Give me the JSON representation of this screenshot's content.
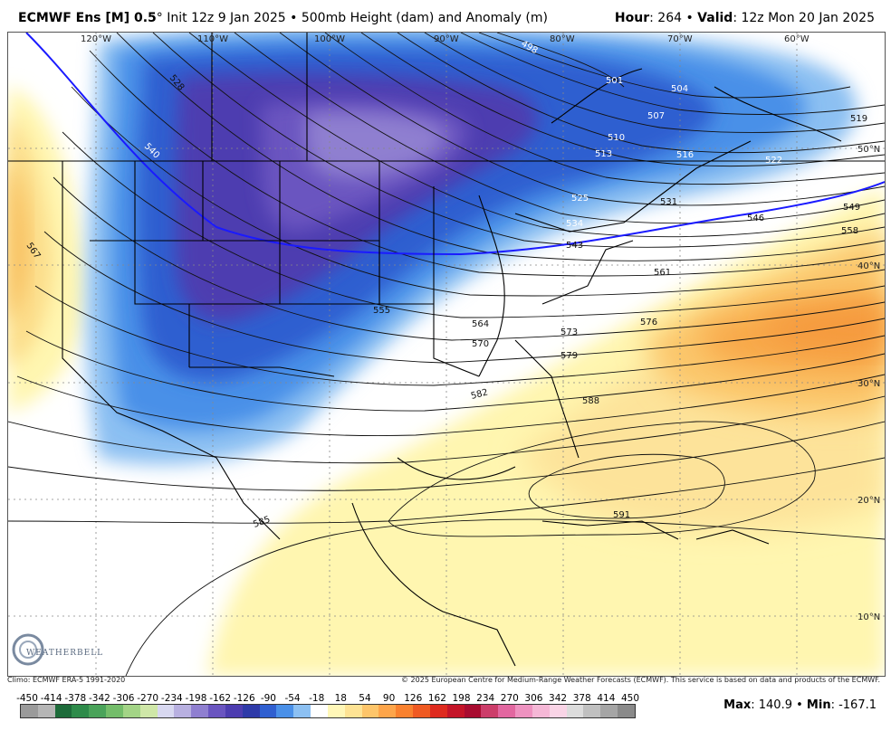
{
  "header": {
    "model": "ECMWF Ens [M] 0.5",
    "degree": "°",
    "init": " Init 12z 9 Jan 2025 • 500mb Height (dam) and Anomaly (m)",
    "hour_label": "Hour",
    "hour_value": ": 264 • ",
    "valid_label": "Valid",
    "valid_value": ": 12z Mon 20 Jan 2025"
  },
  "map": {
    "lon_labels": [
      "120°W",
      "110°W",
      "100°W",
      "90°W",
      "80°W",
      "70°W",
      "60°W"
    ],
    "lat_labels": [
      "50°N",
      "40°N",
      "30°N",
      "20°N",
      "10°N"
    ],
    "contour_labels": [
      "498",
      "501",
      "504",
      "507",
      "510",
      "513",
      "516",
      "519",
      "522",
      "525",
      "528",
      "531",
      "534",
      "540",
      "543",
      "546",
      "549",
      "555",
      "558",
      "561",
      "564",
      "567",
      "570",
      "573",
      "576",
      "579",
      "582",
      "585",
      "588",
      "591"
    ],
    "logo_text": "WEATHERBELL"
  },
  "footer": {
    "climo": "Climo: ECMWF ERA-5 1991-2020",
    "copyright": "© 2025 European Centre for Medium-Range Weather Forecasts (ECMWF). This service is based on data and products of the ECMWF."
  },
  "colorbar": {
    "ticks": [
      "-450",
      "-414",
      "-378",
      "-342",
      "-306",
      "-270",
      "-234",
      "-198",
      "-162",
      "-126",
      "-90",
      "-54",
      "-18",
      "18",
      "54",
      "90",
      "126",
      "162",
      "198",
      "234",
      "270",
      "306",
      "342",
      "378",
      "414",
      "450"
    ],
    "colors": [
      "#9a9a9a",
      "#b5b5b5",
      "#1d6b3a",
      "#2e8b4a",
      "#4aa35a",
      "#74bd6a",
      "#a3d486",
      "#cfe7a8",
      "#d8d8f0",
      "#b8b0e0",
      "#8f7fd0",
      "#6a55c0",
      "#4d3db0",
      "#2e3aa8",
      "#2f5fd0",
      "#4a90e8",
      "#8cc0f2",
      "#ffffff",
      "#fff7b8",
      "#fee394",
      "#fdc56a",
      "#fda54a",
      "#f9812e",
      "#ef5a22",
      "#de2a1e",
      "#c41428",
      "#a80c30",
      "#cc3d6a",
      "#e267a0",
      "#ee92c0",
      "#f5b7d6",
      "#f9d4e6",
      "#dcdcdc",
      "#c0c0c0",
      "#a5a5a5",
      "#8a8a8a"
    ]
  },
  "stats": {
    "max_label": "Max",
    "max_value": ": 140.9 • ",
    "min_label": "Min",
    "min_value": ": -167.1"
  }
}
